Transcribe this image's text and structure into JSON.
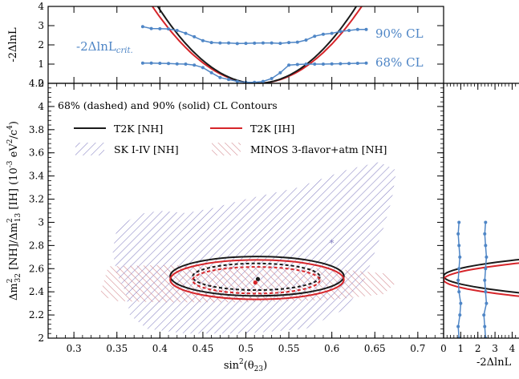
{
  "chart_data": {
    "type": "contour",
    "main": {
      "title": "68% (dashed) and 90% (solid) CL Contours",
      "xlabel": "sin²(θ₂₃)",
      "ylabel": "Δm²₃₂ [NH]/Δm²₁₃ [IH] (10⁻³ eV²/c⁴)",
      "xlim": [
        0.27,
        0.73
      ],
      "ylim": [
        2.0,
        4.2
      ],
      "xticks": [
        0.3,
        0.35,
        0.4,
        0.45,
        0.5,
        0.55,
        0.6,
        0.65,
        0.7
      ],
      "xtick_labels": [
        "0.3",
        "0.35",
        "0.4",
        "0.45",
        "0.5",
        "0.55",
        "0.6",
        "0.65",
        "0.7"
      ],
      "yticks": [
        2.0,
        2.2,
        2.4,
        2.6,
        2.8,
        3.0,
        3.2,
        3.4,
        3.6,
        3.8,
        4.0,
        4.2
      ],
      "ytick_labels": [
        "2",
        "2.2",
        "2.4",
        "2.6",
        "2.8",
        "3",
        "3.2",
        "3.4",
        "3.6",
        "3.8",
        "4",
        "4.2"
      ],
      "legend": [
        "T2K [NH]",
        "T2K [IH]",
        "SK I-IV [NH]",
        "MINOS 3-flavor+atm [NH]"
      ],
      "best_fit": [
        {
          "name": "T2K [NH]",
          "x": 0.514,
          "y": 2.51
        },
        {
          "name": "T2K [IH]",
          "x": 0.511,
          "y": 2.48
        },
        {
          "name": "SK I-IV [NH]",
          "x": 0.6,
          "y": 2.82
        }
      ],
      "contours": {
        "t2k_nh_90": {
          "cx": 0.513,
          "cy": 2.535,
          "rx": 0.101,
          "ry": 0.17
        },
        "t2k_ih_90": {
          "cx": 0.513,
          "cy": 2.505,
          "rx": 0.101,
          "ry": 0.17
        },
        "t2k_nh_68": {
          "cx": 0.512,
          "cy": 2.53,
          "rx": 0.074,
          "ry": 0.115
        },
        "t2k_ih_68": {
          "cx": 0.512,
          "cy": 2.5,
          "rx": 0.074,
          "ry": 0.115
        }
      },
      "sk_region": [
        [
          0.43,
          2.04
        ],
        [
          0.385,
          2.08
        ],
        [
          0.365,
          2.2
        ],
        [
          0.36,
          2.4
        ],
        [
          0.35,
          2.55
        ],
        [
          0.345,
          2.75
        ],
        [
          0.35,
          2.95
        ],
        [
          0.375,
          3.07
        ],
        [
          0.4,
          3.1
        ],
        [
          0.43,
          3.08
        ],
        [
          0.46,
          3.12
        ],
        [
          0.5,
          3.2
        ],
        [
          0.56,
          3.3
        ],
        [
          0.62,
          3.46
        ],
        [
          0.655,
          3.52
        ],
        [
          0.675,
          3.45
        ],
        [
          0.67,
          3.2
        ],
        [
          0.66,
          2.95
        ],
        [
          0.648,
          2.7
        ],
        [
          0.635,
          2.45
        ],
        [
          0.615,
          2.25
        ],
        [
          0.57,
          2.08
        ],
        [
          0.5,
          2.04
        ]
      ],
      "minos_region": [
        [
          0.33,
          2.37
        ],
        [
          0.34,
          2.62
        ],
        [
          0.4,
          2.63
        ],
        [
          0.5,
          2.62
        ],
        [
          0.6,
          2.6
        ],
        [
          0.66,
          2.56
        ],
        [
          0.675,
          2.48
        ],
        [
          0.66,
          2.38
        ],
        [
          0.6,
          2.33
        ],
        [
          0.5,
          2.31
        ],
        [
          0.4,
          2.31
        ],
        [
          0.35,
          2.32
        ]
      ]
    },
    "top": {
      "ylabel": "-2ΔlnL",
      "ylim": [
        0,
        4
      ],
      "yticks": [
        0,
        1,
        2,
        3,
        4
      ],
      "ytick_labels": [
        "0",
        "1",
        "2",
        "3",
        "4"
      ],
      "crit_label_base": "-2ΔlnL",
      "crit_label_sub": "crit.",
      "cl_labels": [
        "90% CL",
        "68% CL"
      ],
      "crit_90": {
        "x": [
          0.38,
          0.39,
          0.4,
          0.41,
          0.42,
          0.43,
          0.44,
          0.45,
          0.46,
          0.47,
          0.48,
          0.49,
          0.5,
          0.51,
          0.52,
          0.53,
          0.54,
          0.55,
          0.56,
          0.57,
          0.58,
          0.59,
          0.6,
          0.61,
          0.62,
          0.63,
          0.64
        ],
        "y": [
          2.95,
          2.85,
          2.84,
          2.83,
          2.75,
          2.6,
          2.42,
          2.22,
          2.12,
          2.1,
          2.1,
          2.07,
          2.08,
          2.09,
          2.1,
          2.1,
          2.08,
          2.12,
          2.14,
          2.25,
          2.45,
          2.55,
          2.6,
          2.7,
          2.75,
          2.8,
          2.8
        ]
      },
      "crit_68": {
        "x": [
          0.38,
          0.39,
          0.4,
          0.41,
          0.42,
          0.43,
          0.44,
          0.45,
          0.46,
          0.47,
          0.48,
          0.49,
          0.5,
          0.51,
          0.52,
          0.53,
          0.54,
          0.55,
          0.56,
          0.57,
          0.58,
          0.59,
          0.6,
          0.61,
          0.62,
          0.63,
          0.64
        ],
        "y": [
          1.05,
          1.05,
          1.04,
          1.03,
          1.01,
          1.0,
          0.95,
          0.82,
          0.55,
          0.3,
          0.2,
          0.1,
          0.05,
          0.05,
          0.1,
          0.25,
          0.55,
          0.95,
          0.98,
          1.0,
          1.0,
          1.0,
          1.01,
          1.02,
          1.03,
          1.04,
          1.05
        ]
      },
      "nh_curve": {
        "center": 0.513,
        "k": 300
      },
      "ih_curve": {
        "center": 0.513,
        "k": 270
      }
    },
    "right": {
      "xlabel": "-2ΔlnL",
      "xticks": [
        0,
        1,
        2,
        3,
        4
      ],
      "xtick_labels": [
        "0",
        "1",
        "2",
        "3",
        "4"
      ],
      "crit_90": {
        "y": [
          2.0,
          2.1,
          2.2,
          2.3,
          2.4,
          2.5,
          2.6,
          2.7,
          2.8,
          2.9,
          3.0
        ],
        "x": [
          2.45,
          2.4,
          2.35,
          2.5,
          2.45,
          2.4,
          2.45,
          2.5,
          2.45,
          2.4,
          2.45
        ]
      },
      "crit_68": {
        "y": [
          2.0,
          2.1,
          2.2,
          2.3,
          2.4,
          2.5,
          2.6,
          2.7,
          2.8,
          2.9,
          3.0
        ],
        "x": [
          0.9,
          0.85,
          0.95,
          1.0,
          0.9,
          0.85,
          0.9,
          0.95,
          0.9,
          0.85,
          0.9
        ]
      }
    },
    "colors": {
      "nh": "#1a1a1a",
      "ih": "#d6252a",
      "crit": "#4f86c6",
      "sk": "#8580c2",
      "minos": "#cf7d84"
    }
  }
}
